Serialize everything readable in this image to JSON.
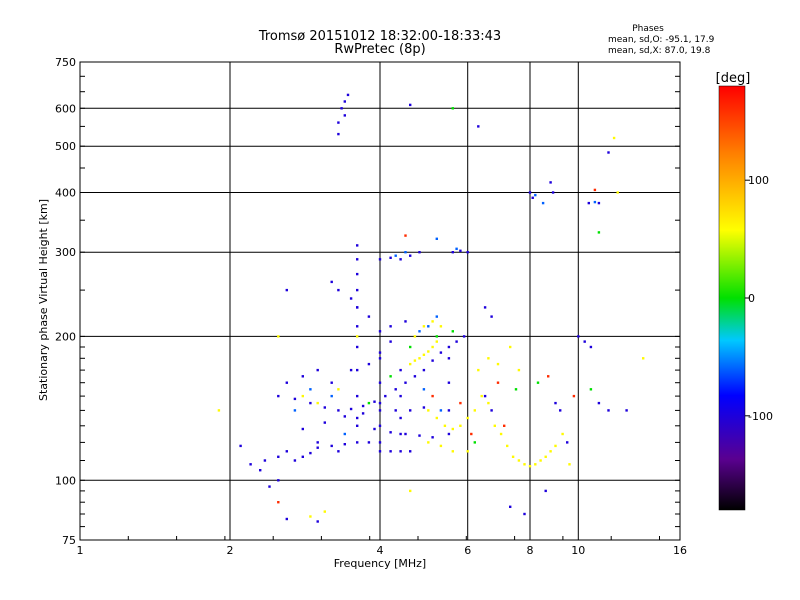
{
  "chart_data": {
    "type": "scatter",
    "title": "Tromsø 20151012 18:32:00-18:33:43",
    "subtitle": "RwPretec (8p)",
    "xlabel": "Frequency [MHz]",
    "ylabel": "Stationary phase Virtual Height [km]",
    "x_scale": "log2",
    "y_scale": "log",
    "xlim": [
      1,
      16
    ],
    "ylim": [
      75,
      750
    ],
    "x_ticks": [
      1,
      2,
      4,
      6,
      8,
      10,
      16
    ],
    "x_tick_labels": [
      "1",
      "2",
      "4",
      "6",
      "8",
      "10",
      "16"
    ],
    "y_ticks": [
      75,
      100,
      200,
      300,
      400,
      500,
      600,
      750
    ],
    "y_tick_labels": [
      "75",
      "100",
      "200",
      "300",
      "400",
      "500",
      "600",
      "750"
    ],
    "grid": true,
    "stats": {
      "title": "Phases",
      "line1": "mean, sd,O: -95.1, 17.9",
      "line2": "mean, sd,X:  87.0, 19.8"
    },
    "colorbar": {
      "label": "[deg]",
      "range": [
        -180,
        180
      ],
      "ticks": [
        100,
        0,
        -100
      ],
      "tick_labels": [
        "100",
        "0",
        "-100"
      ],
      "colormap": [
        "#000000",
        "#5a0090",
        "#0000ff",
        "#00c8ff",
        "#00e000",
        "#ffff00",
        "#ff8000",
        "#ff0000"
      ]
    },
    "series": [
      {
        "color_value": -100,
        "points": [
          [
            3.3,
            560
          ],
          [
            3.35,
            600
          ],
          [
            3.4,
            620
          ],
          [
            3.45,
            640
          ],
          [
            3.3,
            530
          ],
          [
            3.4,
            580
          ],
          [
            4.6,
            610
          ],
          [
            6.3,
            550
          ],
          [
            2.1,
            118
          ],
          [
            2.35,
            110
          ],
          [
            2.5,
            112
          ],
          [
            2.6,
            115
          ],
          [
            2.7,
            110
          ],
          [
            2.8,
            112
          ],
          [
            2.9,
            114
          ],
          [
            3.0,
            117
          ],
          [
            3.2,
            118
          ],
          [
            3.4,
            119
          ],
          [
            3.6,
            120
          ],
          [
            3.8,
            120
          ],
          [
            4.0,
            115
          ],
          [
            4.2,
            115
          ],
          [
            4.4,
            115
          ],
          [
            4.6,
            115
          ],
          [
            2.5,
            150
          ],
          [
            2.7,
            148
          ],
          [
            2.9,
            145
          ],
          [
            3.1,
            142
          ],
          [
            3.3,
            140
          ],
          [
            3.5,
            141
          ],
          [
            3.7,
            143
          ],
          [
            3.9,
            146
          ],
          [
            4.1,
            150
          ],
          [
            4.3,
            155
          ],
          [
            4.5,
            160
          ],
          [
            4.7,
            165
          ],
          [
            4.9,
            170
          ],
          [
            5.1,
            178
          ],
          [
            5.3,
            185
          ],
          [
            5.5,
            190
          ],
          [
            5.7,
            195
          ],
          [
            5.9,
            200
          ],
          [
            2.6,
            160
          ],
          [
            2.8,
            165
          ],
          [
            3.0,
            170
          ],
          [
            3.2,
            160
          ],
          [
            3.5,
            170
          ],
          [
            3.8,
            175
          ],
          [
            4.0,
            185
          ],
          [
            4.2,
            195
          ],
          [
            3.6,
            130
          ],
          [
            3.9,
            128
          ],
          [
            4.2,
            126
          ],
          [
            4.5,
            125
          ],
          [
            4.8,
            124
          ],
          [
            5.1,
            123
          ],
          [
            2.8,
            128
          ],
          [
            3.1,
            132
          ],
          [
            3.4,
            136
          ],
          [
            3.7,
            138
          ],
          [
            4.0,
            140
          ],
          [
            4.3,
            140
          ],
          [
            4.6,
            140
          ],
          [
            4.9,
            142
          ],
          [
            4.0,
            290
          ],
          [
            4.2,
            292
          ],
          [
            4.4,
            290
          ],
          [
            4.6,
            295
          ],
          [
            5.6,
            300
          ],
          [
            5.8,
            302
          ],
          [
            6.0,
            300
          ],
          [
            4.8,
            300
          ],
          [
            3.2,
            260
          ],
          [
            3.3,
            250
          ],
          [
            3.5,
            240
          ],
          [
            3.6,
            230
          ],
          [
            3.8,
            220
          ],
          [
            4.0,
            205
          ],
          [
            4.2,
            210
          ],
          [
            4.5,
            215
          ],
          [
            3.6,
            310
          ],
          [
            3.6,
            290
          ],
          [
            3.6,
            270
          ],
          [
            3.6,
            250
          ],
          [
            3.6,
            230
          ],
          [
            3.6,
            210
          ],
          [
            3.6,
            190
          ],
          [
            3.6,
            170
          ],
          [
            3.6,
            150
          ],
          [
            3.6,
            135
          ],
          [
            4.0,
            180
          ],
          [
            4.0,
            160
          ],
          [
            4.0,
            145
          ],
          [
            4.0,
            130
          ],
          [
            4.0,
            120
          ],
          [
            4.4,
            170
          ],
          [
            4.4,
            150
          ],
          [
            4.4,
            135
          ],
          [
            4.4,
            125
          ],
          [
            5.5,
            180
          ],
          [
            5.5,
            160
          ],
          [
            5.5,
            140
          ],
          [
            5.5,
            125
          ],
          [
            6.5,
            230
          ],
          [
            6.7,
            220
          ],
          [
            6.5,
            150
          ],
          [
            6.7,
            140
          ],
          [
            8.0,
            400
          ],
          [
            8.1,
            390
          ],
          [
            8.8,
            420
          ],
          [
            8.9,
            400
          ],
          [
            10.5,
            380
          ],
          [
            11.0,
            380
          ],
          [
            11.5,
            485
          ],
          [
            10.0,
            200
          ],
          [
            10.3,
            195
          ],
          [
            10.6,
            190
          ],
          [
            11.0,
            145
          ],
          [
            11.5,
            140
          ],
          [
            12.5,
            140
          ],
          [
            9.0,
            145
          ],
          [
            9.2,
            140
          ],
          [
            9.5,
            120
          ],
          [
            8.6,
            95
          ],
          [
            7.3,
            88
          ],
          [
            7.8,
            85
          ],
          [
            2.6,
            83
          ],
          [
            3.0,
            82
          ],
          [
            2.5,
            100
          ],
          [
            2.4,
            97
          ],
          [
            2.3,
            105
          ],
          [
            2.2,
            108
          ],
          [
            2.6,
            250
          ],
          [
            3.0,
            120
          ],
          [
            3.3,
            115
          ]
        ]
      },
      {
        "color_value": -60,
        "points": [
          [
            4.3,
            295
          ],
          [
            4.5,
            300
          ],
          [
            5.2,
            320
          ],
          [
            5.7,
            305
          ],
          [
            2.9,
            155
          ],
          [
            3.2,
            150
          ],
          [
            4.8,
            205
          ],
          [
            5.0,
            210
          ],
          [
            5.2,
            220
          ],
          [
            8.2,
            395
          ],
          [
            8.5,
            380
          ],
          [
            10.8,
            382
          ],
          [
            4.9,
            155
          ],
          [
            5.3,
            140
          ],
          [
            2.7,
            140
          ],
          [
            3.4,
            125
          ]
        ]
      },
      {
        "color_value": 60,
        "points": [
          [
            4.6,
            175
          ],
          [
            4.7,
            178
          ],
          [
            4.8,
            180
          ],
          [
            4.9,
            183
          ],
          [
            5.0,
            186
          ],
          [
            5.1,
            190
          ],
          [
            5.2,
            195
          ],
          [
            4.7,
            200
          ],
          [
            4.9,
            210
          ],
          [
            5.1,
            215
          ],
          [
            5.3,
            210
          ],
          [
            5.0,
            140
          ],
          [
            5.2,
            135
          ],
          [
            5.4,
            130
          ],
          [
            5.6,
            128
          ],
          [
            5.8,
            130
          ],
          [
            6.0,
            135
          ],
          [
            6.2,
            140
          ],
          [
            6.4,
            150
          ],
          [
            6.6,
            145
          ],
          [
            6.8,
            130
          ],
          [
            7.0,
            125
          ],
          [
            7.2,
            118
          ],
          [
            7.4,
            112
          ],
          [
            7.6,
            110
          ],
          [
            7.8,
            108
          ],
          [
            8.0,
            107
          ],
          [
            8.2,
            108
          ],
          [
            8.4,
            110
          ],
          [
            8.6,
            112
          ],
          [
            8.8,
            115
          ],
          [
            9.0,
            118
          ],
          [
            9.3,
            125
          ],
          [
            5.0,
            120
          ],
          [
            5.3,
            118
          ],
          [
            5.6,
            115
          ],
          [
            6.0,
            115
          ],
          [
            6.3,
            170
          ],
          [
            6.6,
            180
          ],
          [
            6.9,
            175
          ],
          [
            2.8,
            150
          ],
          [
            3.0,
            145
          ],
          [
            3.3,
            155
          ],
          [
            2.5,
            200
          ],
          [
            3.6,
            200
          ],
          [
            4.6,
            95
          ],
          [
            7.3,
            190
          ],
          [
            7.6,
            170
          ],
          [
            12.0,
            400
          ],
          [
            11.8,
            520
          ],
          [
            13.5,
            180
          ],
          [
            2.9,
            84
          ],
          [
            3.1,
            86
          ],
          [
            1.9,
            140
          ],
          [
            9.6,
            108
          ]
        ]
      },
      {
        "color_value": 0,
        "points": [
          [
            5.6,
            205
          ],
          [
            5.2,
            200
          ],
          [
            4.6,
            190
          ],
          [
            7.5,
            155
          ],
          [
            8.3,
            160
          ],
          [
            6.2,
            120
          ],
          [
            10.6,
            155
          ],
          [
            11.0,
            330
          ],
          [
            5.6,
            600
          ],
          [
            4.2,
            165
          ],
          [
            3.8,
            145
          ]
        ]
      },
      {
        "color_value": 160,
        "points": [
          [
            5.1,
            150
          ],
          [
            5.8,
            145
          ],
          [
            6.1,
            125
          ],
          [
            7.1,
            130
          ],
          [
            6.9,
            160
          ],
          [
            8.7,
            165
          ],
          [
            9.8,
            150
          ],
          [
            2.5,
            90
          ],
          [
            4.5,
            325
          ],
          [
            10.8,
            405
          ]
        ]
      }
    ]
  }
}
